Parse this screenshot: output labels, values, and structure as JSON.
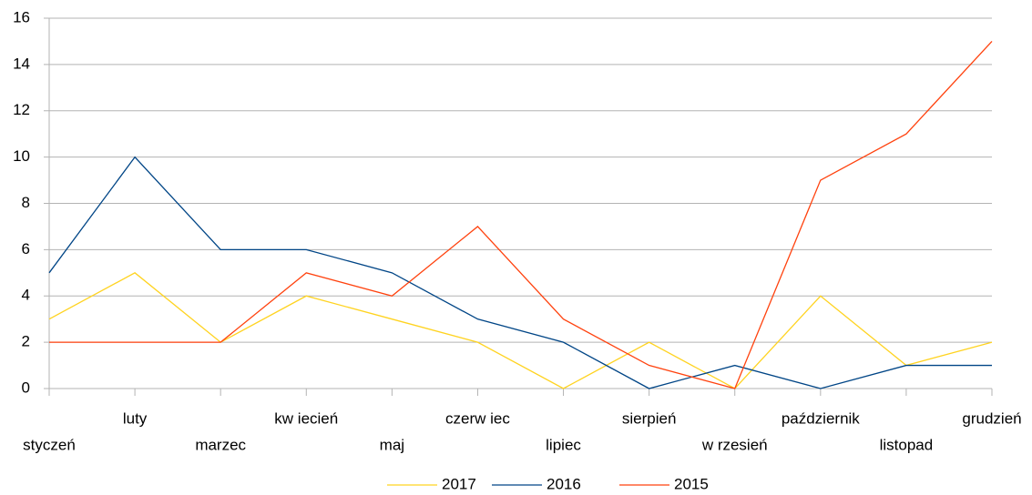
{
  "chart_data": {
    "type": "line",
    "categories": [
      "styczeń",
      "luty",
      "marzec",
      "kw iecień",
      "maj",
      "czerw iec",
      "lipiec",
      "sierpień",
      "w rzesień",
      "październik",
      "listopad",
      "grudzień"
    ],
    "series": [
      {
        "name": "2017",
        "color": "#ffd320",
        "values": [
          3,
          5,
          2,
          4,
          3,
          2,
          0,
          2,
          0,
          4,
          1,
          2
        ]
      },
      {
        "name": "2016",
        "color": "#004586",
        "values": [
          5,
          10,
          6,
          6,
          5,
          3,
          2,
          0,
          1,
          0,
          1,
          1
        ]
      },
      {
        "name": "2015",
        "color": "#ff420e",
        "values": [
          2,
          2,
          2,
          5,
          4,
          7,
          3,
          1,
          0,
          9,
          11,
          15
        ]
      }
    ],
    "ylim": [
      0,
      16
    ],
    "yticks": [
      0,
      2,
      4,
      6,
      8,
      10,
      12,
      14,
      16
    ],
    "grid": true,
    "legend": "bottom"
  }
}
